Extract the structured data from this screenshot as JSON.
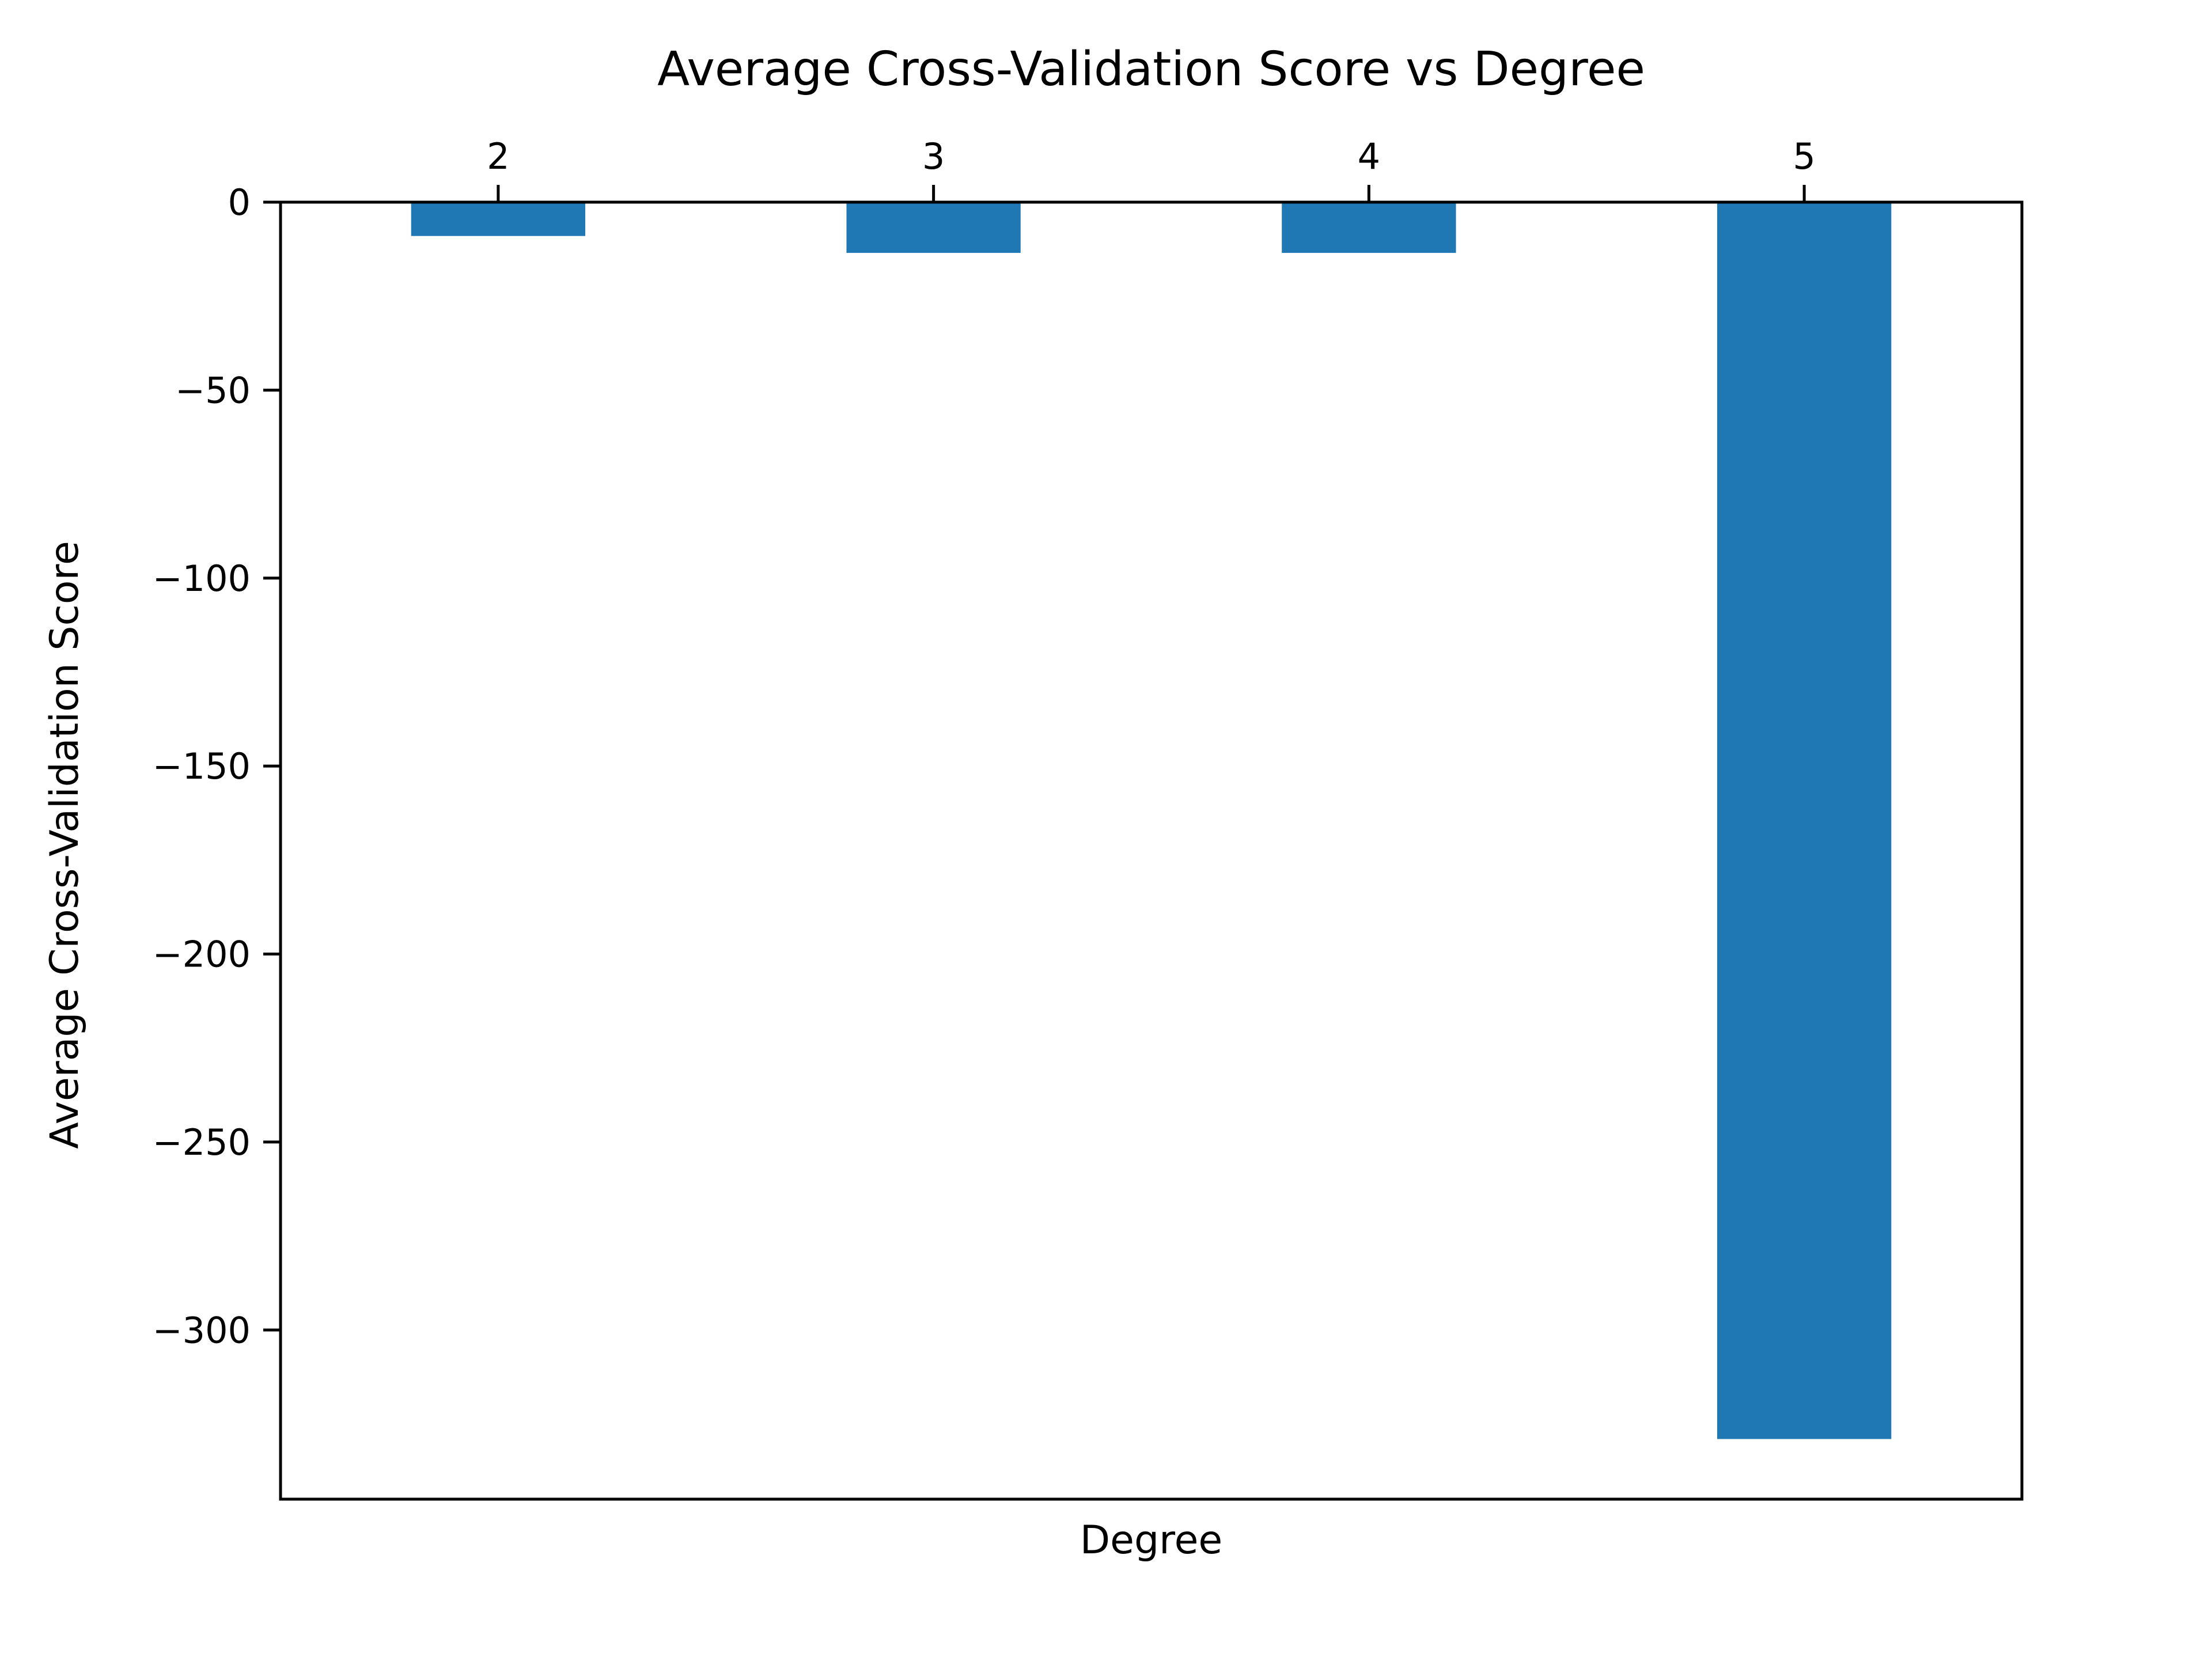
{
  "chart_data": {
    "type": "bar",
    "title": "Average Cross-Validation Score vs Degree",
    "xlabel": "Degree",
    "ylabel": "Average Cross-Validation Score",
    "categories": [
      "2",
      "3",
      "4",
      "5"
    ],
    "values": [
      -9,
      -13.5,
      -13.5,
      -329
    ],
    "ylim": [
      -345,
      0
    ],
    "yticks": [
      0,
      -50,
      -100,
      -150,
      -200,
      -250,
      -300
    ],
    "ytick_labels": [
      "0",
      "−50",
      "−100",
      "−150",
      "−200",
      "−250",
      "−300"
    ],
    "x_axis_position": "top",
    "grid": false,
    "legend": "none",
    "colors": {
      "bar": "#1f77b4",
      "axis": "#000000",
      "background": "#ffffff"
    }
  }
}
